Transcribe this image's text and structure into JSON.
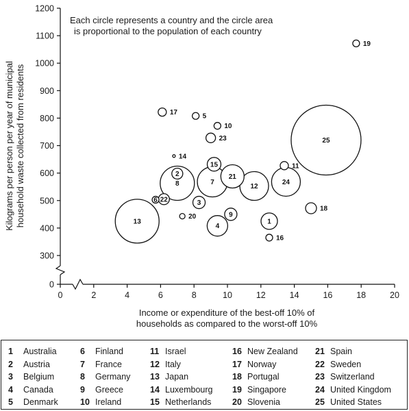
{
  "chart_data": {
    "type": "scatter",
    "subtype": "bubble",
    "title": "",
    "annotation_lines": [
      "Each circle represents a country and the circle area",
      "is proportional to the population of each country"
    ],
    "xlabel_lines": [
      "Income or expenditure of the best-off 10% of",
      "households as compared to the worst-off 10%"
    ],
    "ylabel_lines": [
      "Kilograms per person per year of municipal",
      "household waste collected from residents"
    ],
    "xlim": [
      0,
      20
    ],
    "ylim": [
      0,
      1200
    ],
    "x_ticks": [
      "0",
      "2",
      "4",
      "6",
      "8",
      "10",
      "12",
      "14",
      "16",
      "18",
      "20"
    ],
    "y_ticks": [
      "0",
      "300",
      "400",
      "500",
      "600",
      "700",
      "800",
      "900",
      "1000",
      "1100",
      "1200"
    ],
    "axis_breaks": "both axes broken near origin",
    "grid": false,
    "points": [
      {
        "id": "1",
        "x": 12.5,
        "y": 425,
        "r": 12
      },
      {
        "id": "2",
        "x": 7.0,
        "y": 598,
        "r": 8
      },
      {
        "id": "3",
        "x": 8.3,
        "y": 493,
        "r": 9
      },
      {
        "id": "4",
        "x": 9.4,
        "y": 408,
        "r": 15
      },
      {
        "id": "5",
        "x": 8.1,
        "y": 808,
        "r": 5
      },
      {
        "id": "6",
        "x": 5.7,
        "y": 503,
        "r": 5
      },
      {
        "id": "7",
        "x": 9.1,
        "y": 568,
        "r": 22
      },
      {
        "id": "8",
        "x": 7.0,
        "y": 563,
        "r": 25
      },
      {
        "id": "9",
        "x": 10.2,
        "y": 450,
        "r": 9
      },
      {
        "id": "10",
        "x": 9.4,
        "y": 772,
        "r": 5
      },
      {
        "id": "11",
        "x": 13.4,
        "y": 627,
        "r": 6
      },
      {
        "id": "12",
        "x": 11.6,
        "y": 553,
        "r": 21
      },
      {
        "id": "13",
        "x": 4.6,
        "y": 425,
        "r": 32
      },
      {
        "id": "14",
        "x": 6.8,
        "y": 662,
        "r": 2
      },
      {
        "id": "15",
        "x": 9.2,
        "y": 632,
        "r": 10
      },
      {
        "id": "16",
        "x": 12.5,
        "y": 365,
        "r": 5
      },
      {
        "id": "17",
        "x": 6.1,
        "y": 822,
        "r": 6
      },
      {
        "id": "18",
        "x": 15.0,
        "y": 472,
        "r": 8
      },
      {
        "id": "19",
        "x": 17.7,
        "y": 1072,
        "r": 5
      },
      {
        "id": "20",
        "x": 7.3,
        "y": 443,
        "r": 4
      },
      {
        "id": "21",
        "x": 10.3,
        "y": 588,
        "r": 17
      },
      {
        "id": "22",
        "x": 6.2,
        "y": 505,
        "r": 8
      },
      {
        "id": "23",
        "x": 9.0,
        "y": 728,
        "r": 7
      },
      {
        "id": "24",
        "x": 13.5,
        "y": 568,
        "r": 21
      },
      {
        "id": "25",
        "x": 15.9,
        "y": 720,
        "r": 51
      }
    ],
    "labels_outside": [
      "5",
      "10",
      "11",
      "14",
      "16",
      "17",
      "18",
      "19",
      "20",
      "23"
    ]
  },
  "legend": {
    "columns": [
      [
        {
          "num": "1",
          "name": "Australia"
        },
        {
          "num": "2",
          "name": "Austria"
        },
        {
          "num": "3",
          "name": "Belgium"
        },
        {
          "num": "4",
          "name": "Canada"
        },
        {
          "num": "5",
          "name": "Denmark"
        }
      ],
      [
        {
          "num": "6",
          "name": "Finland"
        },
        {
          "num": "7",
          "name": "France"
        },
        {
          "num": "8",
          "name": "Germany"
        },
        {
          "num": "9",
          "name": "Greece"
        },
        {
          "num": "10",
          "name": "Ireland"
        }
      ],
      [
        {
          "num": "11",
          "name": "Israel"
        },
        {
          "num": "12",
          "name": "Italy"
        },
        {
          "num": "13",
          "name": "Japan"
        },
        {
          "num": "14",
          "name": "Luxembourg"
        },
        {
          "num": "15",
          "name": "Netherlands"
        }
      ],
      [
        {
          "num": "16",
          "name": "New Zealand"
        },
        {
          "num": "17",
          "name": "Norway"
        },
        {
          "num": "18",
          "name": "Portugal"
        },
        {
          "num": "19",
          "name": "Singapore"
        },
        {
          "num": "20",
          "name": "Slovenia"
        }
      ],
      [
        {
          "num": "21",
          "name": "Spain"
        },
        {
          "num": "22",
          "name": "Sweden"
        },
        {
          "num": "23",
          "name": "Switzerland"
        },
        {
          "num": "24",
          "name": "United Kingdom"
        },
        {
          "num": "25",
          "name": "United States"
        }
      ]
    ]
  }
}
